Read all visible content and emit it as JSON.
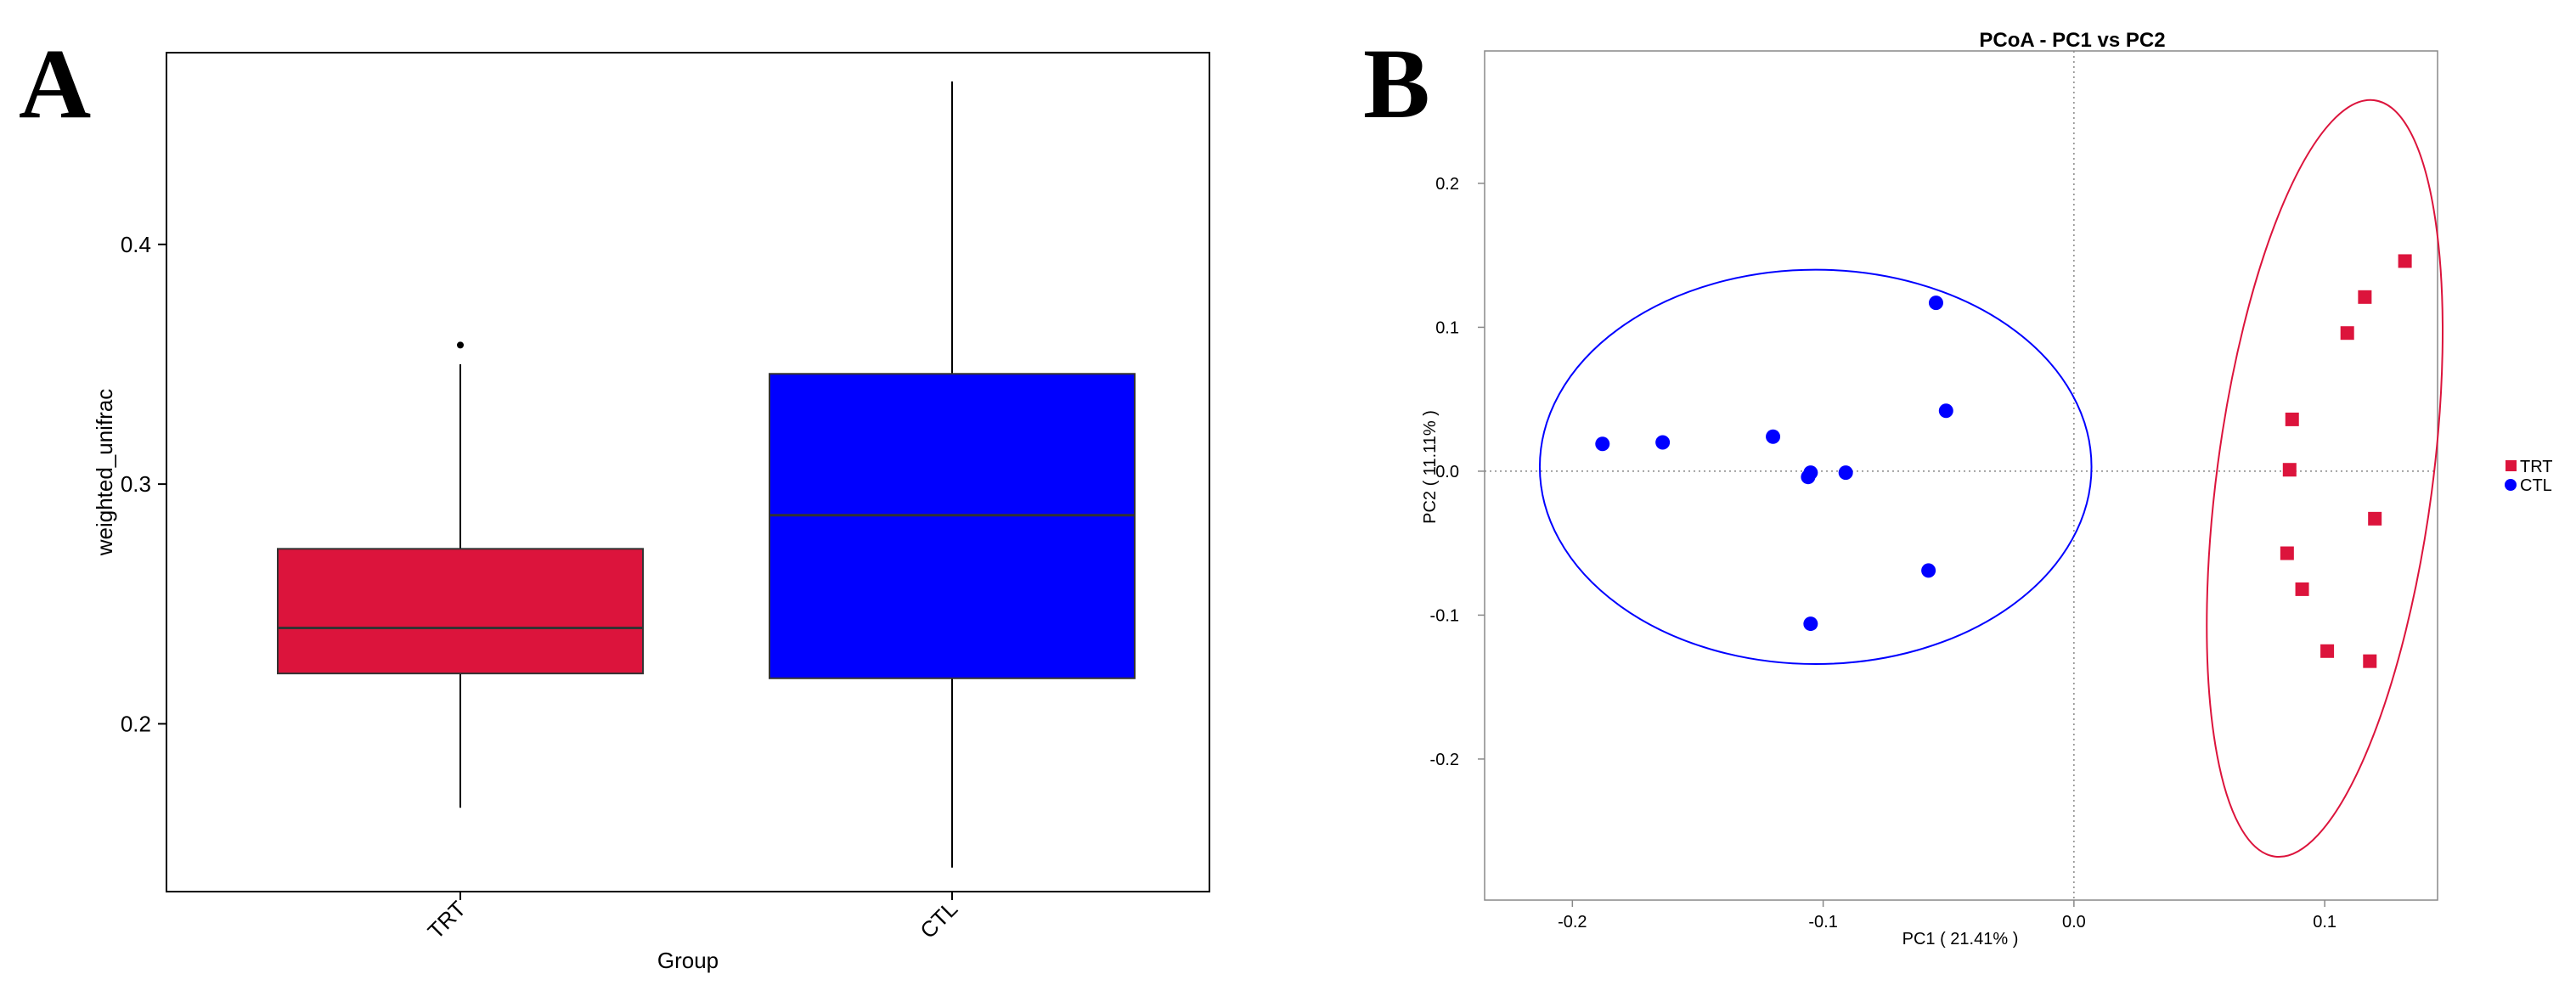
{
  "panels": {
    "a_label": "A",
    "b_label": "B"
  },
  "chart_data": [
    {
      "type": "box",
      "title": "",
      "xlabel": "Group",
      "ylabel": "weighted_unifrac",
      "ylim": [
        0.13,
        0.48
      ],
      "yticks": [
        0.2,
        0.3,
        0.4
      ],
      "ytick_labels": [
        "0.2",
        "0.3",
        "0.4"
      ],
      "categories": [
        "TRT",
        "CTL"
      ],
      "boxes": [
        {
          "name": "TRT",
          "color": "#dc143c",
          "whisker_low": 0.165,
          "q1": 0.221,
          "median": 0.24,
          "q3": 0.273,
          "whisker_high": 0.35,
          "outliers": [
            0.358
          ]
        },
        {
          "name": "CTL",
          "color": "#0000ff",
          "whisker_low": 0.14,
          "q1": 0.219,
          "median": 0.287,
          "q3": 0.346,
          "whisker_high": 0.468,
          "outliers": []
        }
      ],
      "grid": false
    },
    {
      "type": "scatter",
      "title": "PCoA - PC1 vs PC2",
      "xlabel": "PC1 ( 21.41% )",
      "ylabel": "PC2 ( 11.11% )",
      "xlim": [
        -0.235,
        0.145
      ],
      "ylim": [
        -0.298,
        0.292
      ],
      "xticks": [
        -0.2,
        -0.1,
        0.0,
        0.1
      ],
      "xtick_labels": [
        "-0.2",
        "-0.1",
        "0.0",
        "0.1"
      ],
      "yticks": [
        -0.2,
        -0.1,
        0.0,
        0.1,
        0.2
      ],
      "ytick_labels": [
        "-0.2",
        "-0.1",
        "0.0",
        "0.1",
        "0.2"
      ],
      "legend_position": "right",
      "series": [
        {
          "name": "TRT",
          "color": "#dc143c",
          "marker": "square",
          "points": [
            [
              0.132,
              0.146
            ],
            [
              0.116,
              0.121
            ],
            [
              0.109,
              0.096
            ],
            [
              0.087,
              0.036
            ],
            [
              0.086,
              0.001
            ],
            [
              0.12,
              -0.033
            ],
            [
              0.085,
              -0.057
            ],
            [
              0.091,
              -0.082
            ],
            [
              0.101,
              -0.125
            ],
            [
              0.118,
              -0.132
            ]
          ],
          "ellipse": {
            "cx": 0.1,
            "cy": -0.005,
            "rx": 0.043,
            "ry": 0.265,
            "angle_deg": 7.5
          }
        },
        {
          "name": "CTL",
          "color": "#0000ff",
          "marker": "circle",
          "points": [
            [
              -0.188,
              0.019
            ],
            [
              -0.164,
              0.02
            ],
            [
              -0.12,
              0.024
            ],
            [
              -0.105,
              -0.001
            ],
            [
              -0.106,
              -0.004
            ],
            [
              -0.091,
              -0.001
            ],
            [
              -0.055,
              0.117
            ],
            [
              -0.051,
              0.042
            ],
            [
              -0.058,
              -0.069
            ],
            [
              -0.105,
              -0.106
            ]
          ],
          "ellipse": {
            "cx": -0.103,
            "cy": 0.003,
            "rx": 0.11,
            "ry": 0.137,
            "angle_deg": 0
          }
        }
      ],
      "reference_lines": {
        "x": 0,
        "y": 0,
        "style": "dotted"
      },
      "grid": false
    }
  ]
}
